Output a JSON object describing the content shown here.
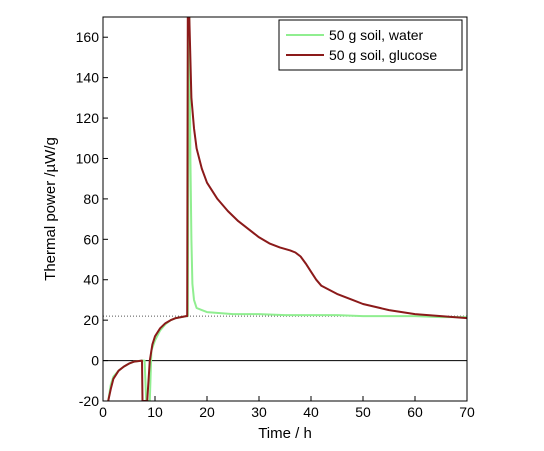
{
  "chart_data": {
    "type": "line",
    "xlabel": "Time / h",
    "ylabel": "Thermal power /µW/g",
    "xlim": [
      0,
      70
    ],
    "ylim": [
      -20,
      170
    ],
    "xticks": [
      0,
      10,
      20,
      30,
      40,
      50,
      60,
      70
    ],
    "yticks": [
      -20,
      0,
      20,
      40,
      60,
      80,
      100,
      120,
      140,
      160
    ],
    "grid": false,
    "legend_position": "top-right",
    "reference_lines": [
      {
        "y": 0,
        "style": "solid",
        "color": "#000000"
      },
      {
        "y": 22,
        "style": "dotted",
        "color": "#555555"
      }
    ],
    "series": [
      {
        "name": "50 g soil, water",
        "color": "#90ee90",
        "points": [
          [
            1.0,
            -20
          ],
          [
            1.5,
            -12
          ],
          [
            2.0,
            -8
          ],
          [
            3.0,
            -5
          ],
          [
            4.0,
            -3
          ],
          [
            5.0,
            -1.5
          ],
          [
            6.0,
            -0.5
          ],
          [
            7.5,
            0
          ],
          [
            8.0,
            0
          ],
          [
            8.3,
            -20
          ],
          [
            9.0,
            -20
          ],
          [
            9.3,
            5
          ],
          [
            10.0,
            10
          ],
          [
            11.0,
            15
          ],
          [
            12.0,
            18
          ],
          [
            13.0,
            20
          ],
          [
            14.0,
            21
          ],
          [
            15.0,
            21.5
          ],
          [
            16.0,
            22
          ],
          [
            16.3,
            22
          ],
          [
            16.5,
            170
          ],
          [
            16.6,
            170
          ],
          [
            16.8,
            100
          ],
          [
            17.0,
            60
          ],
          [
            17.2,
            38
          ],
          [
            17.5,
            30
          ],
          [
            18.0,
            26
          ],
          [
            19.0,
            25
          ],
          [
            20.0,
            24
          ],
          [
            25.0,
            23
          ],
          [
            30.0,
            23
          ],
          [
            35.0,
            22.5
          ],
          [
            40.0,
            22.5
          ],
          [
            45.0,
            22.5
          ],
          [
            50.0,
            22
          ],
          [
            55.0,
            22
          ],
          [
            60.0,
            22
          ],
          [
            65.0,
            21.5
          ],
          [
            70.0,
            21.5
          ]
        ]
      },
      {
        "name": "50 g soil, glucose",
        "color": "#8b1a1a",
        "points": [
          [
            1.0,
            -20
          ],
          [
            1.5,
            -14
          ],
          [
            2.0,
            -9
          ],
          [
            3.0,
            -5
          ],
          [
            4.0,
            -3
          ],
          [
            5.0,
            -1.5
          ],
          [
            6.0,
            -0.5
          ],
          [
            7.5,
            0
          ],
          [
            7.6,
            -20
          ],
          [
            8.5,
            -20
          ],
          [
            9.0,
            0
          ],
          [
            9.5,
            8
          ],
          [
            10.0,
            12
          ],
          [
            11.0,
            16
          ],
          [
            12.0,
            18.5
          ],
          [
            13.0,
            20
          ],
          [
            14.0,
            21
          ],
          [
            15.0,
            21.5
          ],
          [
            16.0,
            22
          ],
          [
            16.2,
            22
          ],
          [
            16.3,
            170
          ],
          [
            16.6,
            170
          ],
          [
            17.0,
            130
          ],
          [
            17.5,
            115
          ],
          [
            18.0,
            105
          ],
          [
            19.0,
            95
          ],
          [
            20.0,
            88
          ],
          [
            22.0,
            80
          ],
          [
            24.0,
            74
          ],
          [
            26.0,
            69
          ],
          [
            28.0,
            65
          ],
          [
            30.0,
            61
          ],
          [
            32.0,
            58
          ],
          [
            34.0,
            56
          ],
          [
            36.0,
            54.5
          ],
          [
            37.0,
            53.5
          ],
          [
            38.0,
            51.5
          ],
          [
            39.0,
            48
          ],
          [
            40.0,
            44
          ],
          [
            41.0,
            40
          ],
          [
            42.0,
            37
          ],
          [
            45.0,
            33
          ],
          [
            48.0,
            30
          ],
          [
            50.0,
            28
          ],
          [
            55.0,
            25
          ],
          [
            60.0,
            23
          ],
          [
            65.0,
            22
          ],
          [
            70.0,
            21
          ]
        ]
      }
    ]
  }
}
